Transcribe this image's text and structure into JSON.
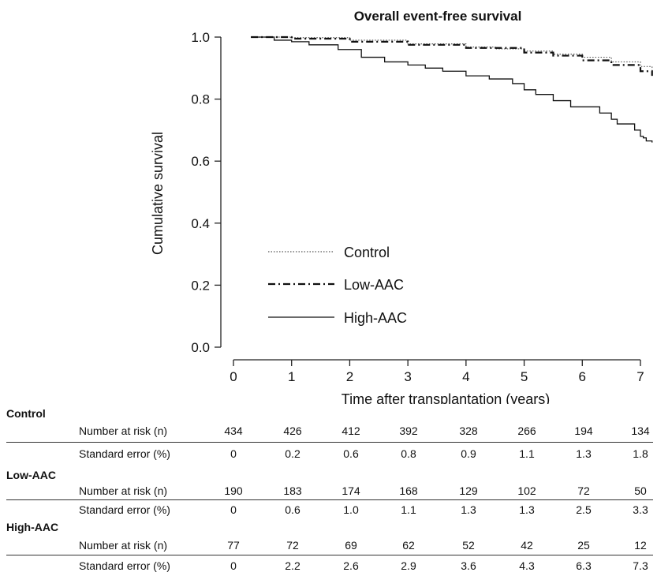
{
  "chart_data": {
    "type": "line",
    "title": "Overall event-free survival",
    "xlabel": "Time after transplantation (years)",
    "ylabel": "Cumulative survival",
    "xlim": [
      -0.3,
      7.2
    ],
    "ylim": [
      -0.03,
      1.05
    ],
    "xticks": [
      "0",
      "1",
      "2",
      "3",
      "4",
      "5",
      "6",
      "7"
    ],
    "yticks": [
      "0.0",
      "0.2",
      "0.4",
      "0.6",
      "0.8",
      "1.0"
    ],
    "grid": false,
    "legend_position": "lower-left",
    "series": [
      {
        "name": "Control",
        "style": "dotted",
        "x": [
          0.3,
          1.0,
          2.0,
          3.0,
          4.0,
          4.5,
          5.0,
          5.5,
          6.0,
          6.5,
          7.0,
          7.2
        ],
        "y": [
          1.0,
          0.998,
          0.99,
          0.978,
          0.968,
          0.962,
          0.955,
          0.945,
          0.935,
          0.92,
          0.905,
          0.895
        ]
      },
      {
        "name": "Low-AAC",
        "style": "dashdot",
        "x": [
          0.3,
          1.0,
          2.0,
          3.0,
          4.0,
          5.0,
          5.5,
          6.0,
          6.5,
          7.0,
          7.2
        ],
        "y": [
          1.0,
          0.995,
          0.985,
          0.975,
          0.965,
          0.95,
          0.94,
          0.925,
          0.91,
          0.89,
          0.875
        ]
      },
      {
        "name": "High-AAC",
        "style": "solid",
        "x": [
          0.3,
          0.7,
          1.0,
          1.3,
          1.8,
          2.2,
          2.6,
          3.0,
          3.3,
          3.6,
          4.0,
          4.4,
          4.8,
          5.0,
          5.2,
          5.5,
          5.8,
          6.3,
          6.5,
          6.6,
          6.9,
          7.0,
          7.05,
          7.1,
          7.2
        ],
        "y": [
          1.0,
          0.99,
          0.985,
          0.975,
          0.96,
          0.935,
          0.92,
          0.91,
          0.9,
          0.89,
          0.875,
          0.865,
          0.85,
          0.83,
          0.815,
          0.795,
          0.775,
          0.755,
          0.735,
          0.72,
          0.7,
          0.68,
          0.675,
          0.665,
          0.66
        ]
      }
    ]
  },
  "risk_table": {
    "columns": [
      "0",
      "1",
      "2",
      "3",
      "4",
      "5",
      "6",
      "7"
    ],
    "groups": [
      {
        "name": "Control",
        "rows": [
          {
            "label": "Number at risk (n)",
            "values": [
              "434",
              "426",
              "412",
              "392",
              "328",
              "266",
              "194",
              "134"
            ]
          },
          {
            "label": "Standard error (%)",
            "values": [
              "0",
              "0.2",
              "0.6",
              "0.8",
              "0.9",
              "1.1",
              "1.3",
              "1.8"
            ]
          }
        ]
      },
      {
        "name": "Low-AAC",
        "rows": [
          {
            "label": "Number at risk (n)",
            "values": [
              "190",
              "183",
              "174",
              "168",
              "129",
              "102",
              "72",
              "50"
            ]
          },
          {
            "label": "Standard error (%)",
            "values": [
              "0",
              "0.6",
              "1.0",
              "1.1",
              "1.3",
              "1.3",
              "2.5",
              "3.3"
            ]
          }
        ]
      },
      {
        "name": "High-AAC",
        "rows": [
          {
            "label": "Number at risk (n)",
            "values": [
              "77",
              "72",
              "69",
              "62",
              "52",
              "42",
              "25",
              "12"
            ]
          },
          {
            "label": "Standard error (%)",
            "values": [
              "0",
              "2.2",
              "2.6",
              "2.9",
              "3.6",
              "4.3",
              "6.3",
              "7.3"
            ]
          }
        ]
      }
    ]
  }
}
